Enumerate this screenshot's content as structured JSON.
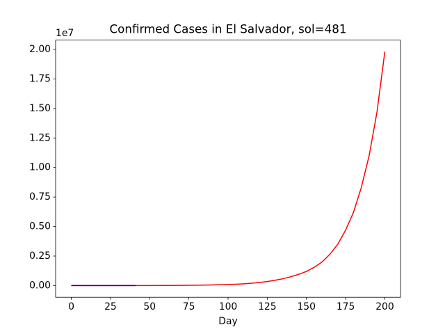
{
  "chart_data": {
    "type": "line",
    "title": "Confirmed Cases in El Salvador, sol=481",
    "x_label": "Day",
    "y_offset_label": "1e7",
    "xlim": [
      -10,
      210
    ],
    "ylim": [
      -0.099,
      2.079
    ],
    "xticks": [
      0,
      25,
      50,
      75,
      100,
      125,
      150,
      175,
      200
    ],
    "yticks": [
      {
        "value": 0,
        "label": "0.00"
      },
      {
        "value": 0.25,
        "label": "0.25"
      },
      {
        "value": 0.5,
        "label": "0.50"
      },
      {
        "value": 0.75,
        "label": "0.75"
      },
      {
        "value": 1,
        "label": "1.00"
      },
      {
        "value": 1.25,
        "label": "1.25"
      },
      {
        "value": 1.5,
        "label": "1.50"
      },
      {
        "value": 1.75,
        "label": "1.75"
      },
      {
        "value": 2,
        "label": "2.00"
      }
    ],
    "series": [
      {
        "color": "#ff0000",
        "x": [
          0,
          10,
          20,
          30,
          40,
          50,
          60,
          70,
          80,
          90,
          100,
          105,
          110,
          115,
          120,
          125,
          130,
          135,
          140,
          145,
          150,
          155,
          160,
          165,
          170,
          175,
          180,
          185,
          190,
          195,
          200
        ],
        "values": [
          0,
          0,
          0.0001,
          0.0002,
          0.0003,
          0.0005,
          0.0009,
          0.0016,
          0.0028,
          0.005,
          0.0088,
          0.0115,
          0.015,
          0.02,
          0.026,
          0.034,
          0.045,
          0.058,
          0.075,
          0.095,
          0.12,
          0.155,
          0.2,
          0.265,
          0.35,
          0.47,
          0.62,
          0.83,
          1.1,
          1.47,
          1.98
        ]
      },
      {
        "color": "#0000ff",
        "x": [
          0,
          10,
          20,
          30,
          41
        ],
        "values": [
          0,
          0,
          0,
          0.0001,
          0.0001
        ]
      }
    ]
  }
}
